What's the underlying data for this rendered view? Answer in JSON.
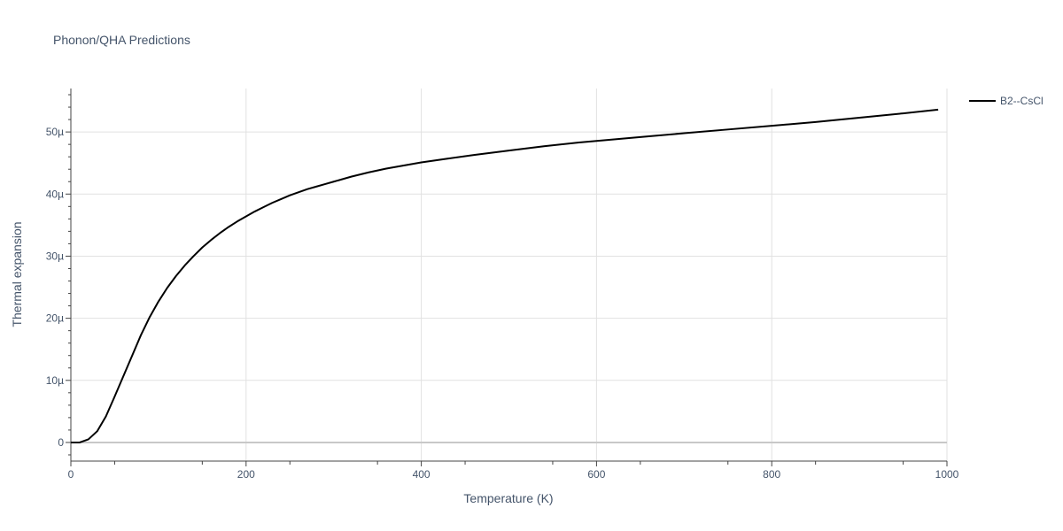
{
  "chart_data": {
    "type": "line",
    "title": "Phonon/QHA Predictions",
    "xlabel": "Temperature (K)",
    "ylabel": "Thermal expansion",
    "xlim": [
      0,
      1000
    ],
    "ylim": [
      -3e-06,
      5.7e-05
    ],
    "x_ticks": [
      0,
      200,
      400,
      600,
      800,
      1000
    ],
    "x_tick_labels": [
      "0",
      "200",
      "400",
      "600",
      "800",
      "1000"
    ],
    "y_ticks": [
      0,
      1e-05,
      2e-05,
      3e-05,
      4e-05,
      5e-05
    ],
    "y_tick_labels": [
      "0",
      "10µ",
      "20µ",
      "30µ",
      "40µ",
      "50µ"
    ],
    "grid": true,
    "legend_position": "top-right",
    "series": [
      {
        "name": "B2--CsCl",
        "color": "#000000",
        "x": [
          0,
          10,
          20,
          30,
          40,
          50,
          60,
          70,
          80,
          90,
          100,
          110,
          120,
          130,
          140,
          150,
          160,
          170,
          180,
          190,
          200,
          210,
          220,
          230,
          240,
          250,
          260,
          270,
          280,
          290,
          300,
          320,
          340,
          360,
          380,
          400,
          430,
          460,
          500,
          540,
          580,
          620,
          660,
          700,
          750,
          800,
          850,
          900,
          950,
          990
        ],
        "y": [
          0,
          0,
          5e-07,
          1.8e-06,
          4.2e-06,
          7.4e-06,
          1.07e-05,
          1.4e-05,
          1.73e-05,
          2.02e-05,
          2.27e-05,
          2.49e-05,
          2.68e-05,
          2.85e-05,
          3e-05,
          3.14e-05,
          3.26e-05,
          3.37e-05,
          3.47e-05,
          3.56e-05,
          3.64e-05,
          3.72e-05,
          3.79e-05,
          3.86e-05,
          3.92e-05,
          3.98e-05,
          4.03e-05,
          4.08e-05,
          4.12e-05,
          4.16e-05,
          4.2e-05,
          4.28e-05,
          4.35e-05,
          4.41e-05,
          4.46e-05,
          4.51e-05,
          4.57e-05,
          4.63e-05,
          4.7e-05,
          4.77e-05,
          4.83e-05,
          4.88e-05,
          4.93e-05,
          4.98e-05,
          5.04e-05,
          5.1e-05,
          5.16e-05,
          5.23e-05,
          5.3e-05,
          5.36e-05
        ]
      }
    ]
  }
}
